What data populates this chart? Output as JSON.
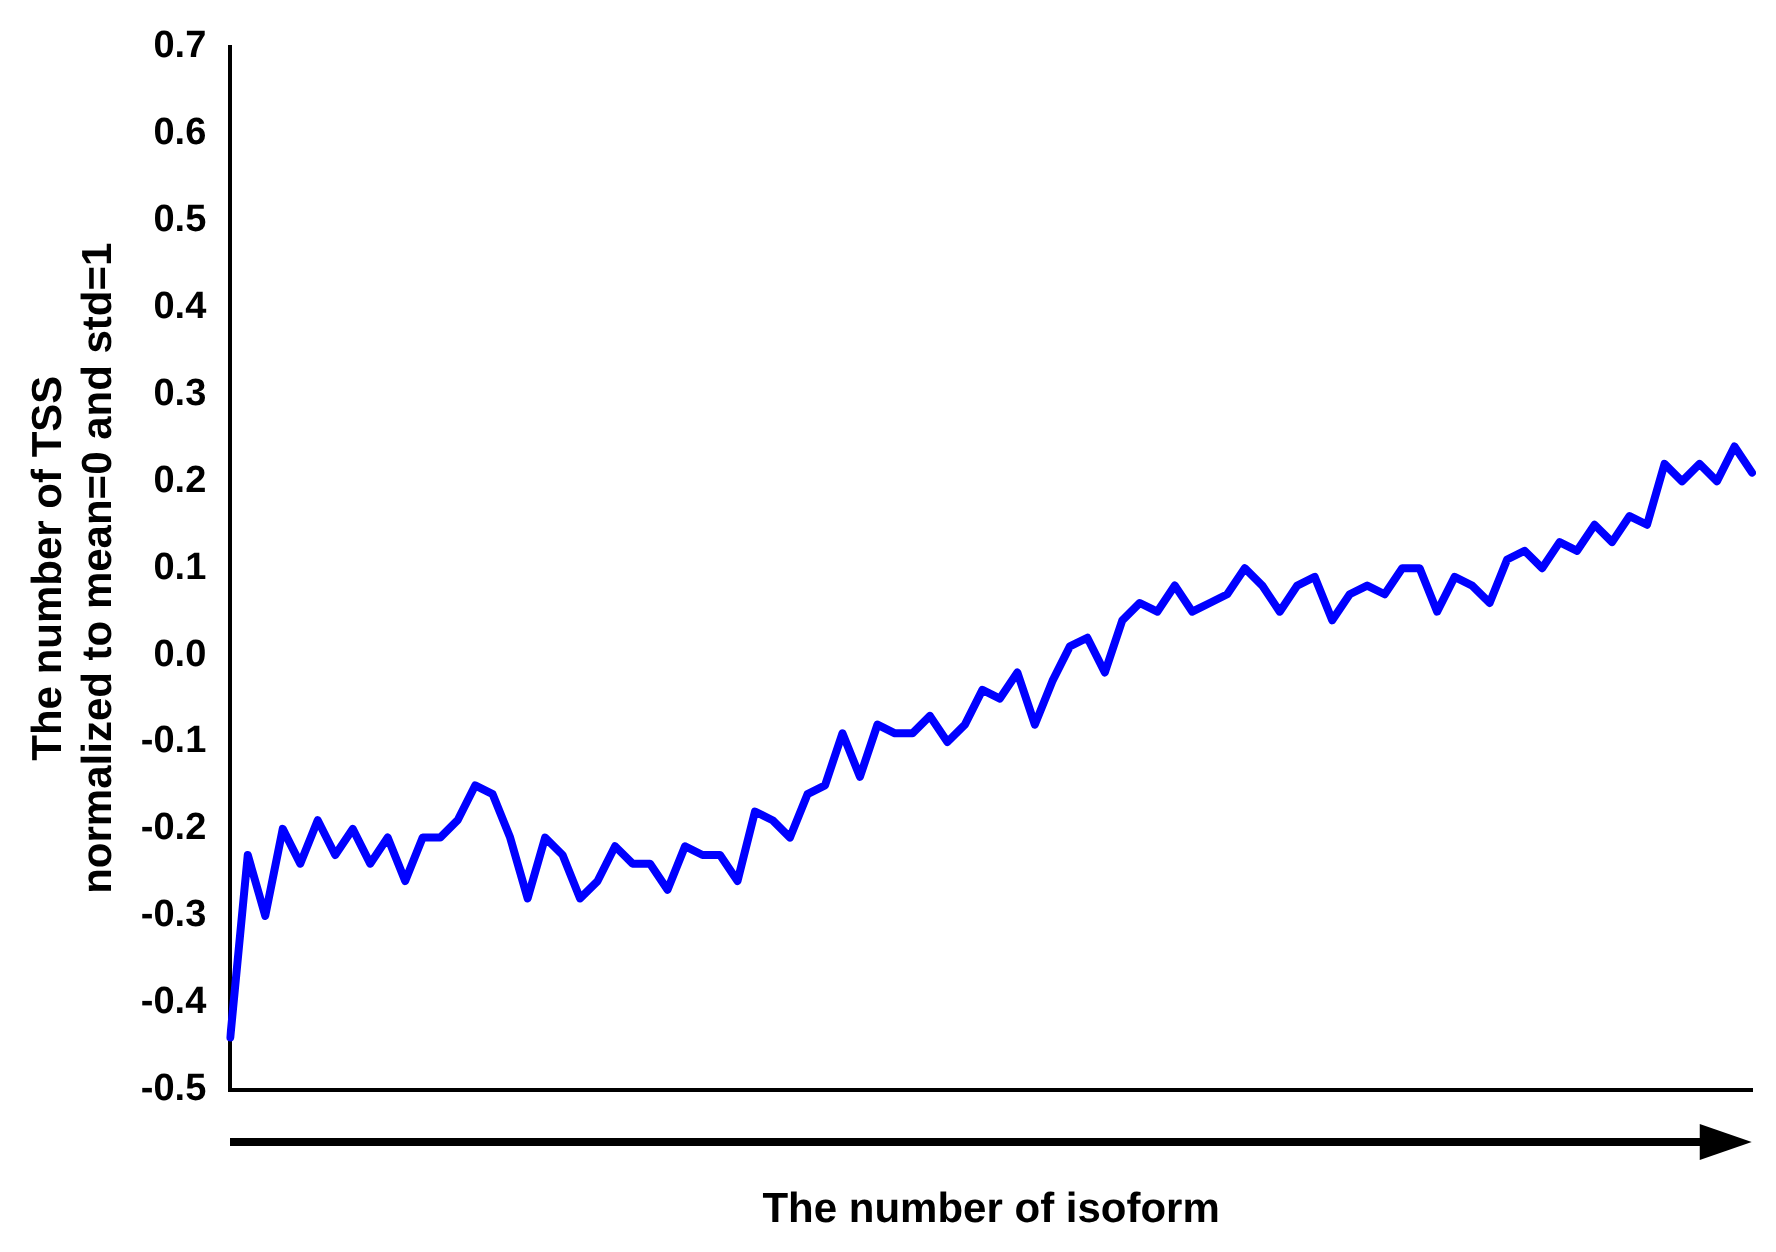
{
  "chart_data": {
    "type": "line",
    "xlabel": "The number of isoform",
    "ylabel": "The number of TSS\nnormalized to mean=0 and std=1",
    "categories": [
      null,
      null,
      null,
      null,
      null,
      null,
      null,
      null,
      null,
      null,
      null,
      null,
      null,
      null,
      null,
      null,
      null,
      null,
      null,
      null,
      null,
      null,
      null,
      null,
      null,
      null,
      null,
      null,
      null,
      null,
      null,
      null,
      null,
      null,
      null,
      null,
      null,
      null,
      null,
      null,
      null,
      null,
      null,
      null,
      null,
      null,
      null,
      null,
      null,
      null,
      null,
      null,
      null,
      null,
      null,
      null,
      null,
      null,
      null,
      null,
      null,
      null,
      null,
      null,
      null,
      null,
      null,
      null,
      null,
      null,
      null,
      null,
      null,
      null,
      null,
      null,
      null,
      null,
      null,
      null,
      null,
      null,
      null,
      null,
      null,
      null,
      null,
      null
    ],
    "series": [
      {
        "color": "#0000ff",
        "values": [
          -0.44,
          -0.23,
          -0.3,
          -0.2,
          -0.24,
          -0.19,
          -0.23,
          -0.2,
          -0.24,
          -0.21,
          -0.26,
          -0.21,
          -0.21,
          -0.19,
          -0.15,
          -0.16,
          -0.21,
          -0.28,
          -0.21,
          -0.23,
          -0.28,
          -0.26,
          -0.22,
          -0.24,
          -0.24,
          -0.27,
          -0.22,
          -0.23,
          -0.23,
          -0.26,
          -0.18,
          -0.19,
          -0.21,
          -0.16,
          -0.15,
          -0.09,
          -0.14,
          -0.08,
          -0.09,
          -0.09,
          -0.07,
          -0.1,
          -0.08,
          -0.04,
          -0.05,
          -0.02,
          -0.08,
          -0.03,
          0.01,
          0.02,
          -0.02,
          0.04,
          0.06,
          0.05,
          0.08,
          0.05,
          0.06,
          0.07,
          0.1,
          0.08,
          0.05,
          0.08,
          0.09,
          0.04,
          0.07,
          0.08,
          0.07,
          0.1,
          0.1,
          0.05,
          0.09,
          0.08,
          0.06,
          0.11,
          0.12,
          0.1,
          0.13,
          0.12,
          0.15,
          0.13,
          0.16,
          0.15,
          0.22,
          0.2,
          0.22,
          0.2,
          0.24,
          0.21
        ]
      }
    ],
    "ylim": [
      -0.5,
      0.7
    ],
    "yticks": [
      {
        "value": -0.5,
        "label": "-0.5"
      },
      {
        "value": -0.4,
        "label": "-0.4"
      },
      {
        "value": -0.3,
        "label": "-0.3"
      },
      {
        "value": -0.2,
        "label": "-0.2"
      },
      {
        "value": -0.1,
        "label": "-0.1"
      },
      {
        "value": 0,
        "label": "0.0"
      },
      {
        "value": 0.1,
        "label": "0.1"
      },
      {
        "value": 0.2,
        "label": "0.2"
      },
      {
        "value": 0.3,
        "label": "0.3"
      },
      {
        "value": 0.4,
        "label": "0.4"
      },
      {
        "value": 0.5,
        "label": "0.5"
      },
      {
        "value": 0.6,
        "label": "0.6"
      },
      {
        "value": 0.7,
        "label": "0.7"
      }
    ],
    "tick_labels": "y",
    "grid": false,
    "legend": false,
    "marker": "none",
    "line_style": "solid"
  }
}
